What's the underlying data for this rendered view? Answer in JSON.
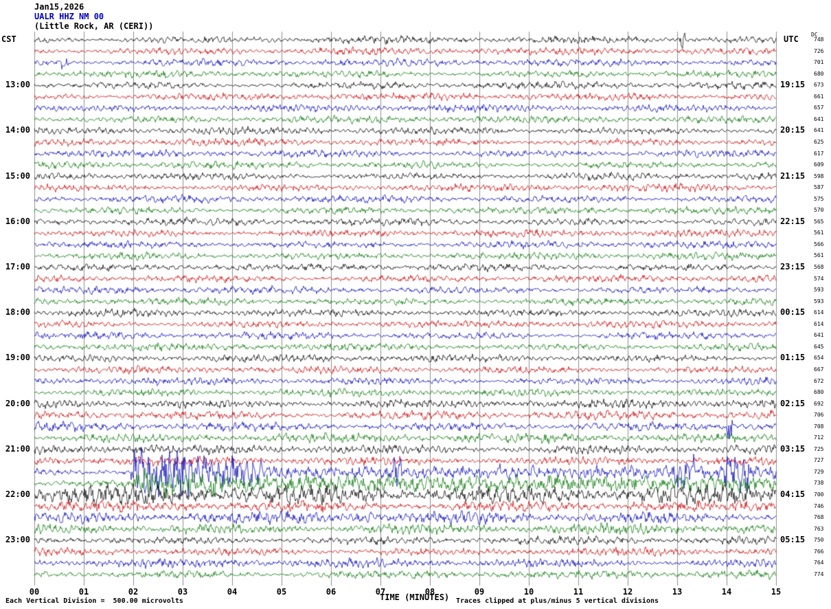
{
  "header": {
    "date": "Jan15,2026",
    "station": "UALR HHZ NM 00",
    "location": "(Little Rock, AR (CERI))"
  },
  "axes": {
    "left_label": "CST",
    "right_label": "UTC",
    "dc_label": "DC",
    "x_axis_title": "TIME (MINUTES)",
    "x_ticks": [
      "00",
      "01",
      "02",
      "03",
      "04",
      "05",
      "06",
      "07",
      "08",
      "09",
      "10",
      "11",
      "12",
      "13",
      "14",
      "15"
    ],
    "left_times": [
      "13:00",
      "14:00",
      "15:00",
      "16:00",
      "17:00",
      "18:00",
      "19:00",
      "20:00",
      "21:00",
      "22:00",
      "23:00"
    ],
    "right_times": [
      "19:15",
      "20:15",
      "21:15",
      "22:15",
      "23:15",
      "00:15",
      "01:15",
      "02:15",
      "03:15",
      "04:15",
      "05:15"
    ]
  },
  "footer": {
    "left": "Each Vertical Division =  500.00 microvolts",
    "right": "Traces clipped at plus/minus 5 vertical divisions"
  },
  "chart_data": {
    "type": "line",
    "title": "UALR HHZ NM 00 helicorder (Little Rock, AR (CERI))",
    "xlabel": "TIME (MINUTES)",
    "x_range": [
      0,
      15
    ],
    "rows": 48,
    "minutes_per_row": 15,
    "row_colors": [
      "#000000",
      "#cc0000",
      "#0000bb",
      "#007700"
    ],
    "grid_color": "#8c8c8c",
    "background": "#ffffff",
    "base_amplitude": 3,
    "clip": 36,
    "noise_seed": 42,
    "dc_values": [
      748,
      726,
      701,
      680,
      673,
      661,
      657,
      641,
      641,
      625,
      617,
      609,
      598,
      587,
      575,
      570,
      565,
      561,
      566,
      561,
      568,
      574,
      593,
      593,
      614,
      614,
      641,
      645,
      654,
      667,
      672,
      680,
      692,
      706,
      708,
      712,
      725,
      727,
      729,
      738,
      700,
      746,
      768,
      763,
      750,
      766,
      764,
      774
    ],
    "row_amp": [
      1,
      1,
      1,
      1,
      1,
      1,
      1,
      1,
      1,
      1,
      1,
      1,
      1,
      1,
      1,
      1,
      1,
      1,
      1,
      1,
      1,
      1,
      1,
      1,
      1,
      1,
      1,
      1,
      1,
      1,
      1,
      1,
      1.2,
      1.2,
      1.2,
      1.3,
      1.3,
      1.2,
      1,
      1,
      2.6,
      1.5,
      1.6,
      1.4,
      1.1,
      1.1,
      1.2,
      1.1
    ],
    "events": [
      {
        "row": 0,
        "start": 13.05,
        "end": 13.18,
        "amp": 11
      },
      {
        "row": 2,
        "start": 0.55,
        "end": 0.7,
        "amp": 8
      },
      {
        "row": 34,
        "start": 14.0,
        "end": 14.12,
        "amp": 14
      },
      {
        "row": 37,
        "start": 2.3,
        "end": 2.6,
        "amp": 6
      },
      {
        "row": 38,
        "start": 1.95,
        "end": 3.2,
        "amp": 30
      },
      {
        "row": 38,
        "start": 3.2,
        "end": 4.6,
        "amp": 17
      },
      {
        "row": 38,
        "start": 4.6,
        "end": 15,
        "amp": 7
      },
      {
        "row": 38,
        "start": 7.25,
        "end": 7.45,
        "amp": 20
      },
      {
        "row": 38,
        "start": 9.4,
        "end": 9.6,
        "amp": 12
      },
      {
        "row": 38,
        "start": 12.9,
        "end": 13.35,
        "amp": 18
      },
      {
        "row": 38,
        "start": 13.95,
        "end": 14.45,
        "amp": 22
      },
      {
        "row": 39,
        "start": 2.0,
        "end": 3.8,
        "amp": 15
      },
      {
        "row": 39,
        "start": 3.8,
        "end": 15,
        "amp": 9
      },
      {
        "row": 42,
        "start": 6.5,
        "end": 7.0,
        "amp": 6
      }
    ]
  }
}
